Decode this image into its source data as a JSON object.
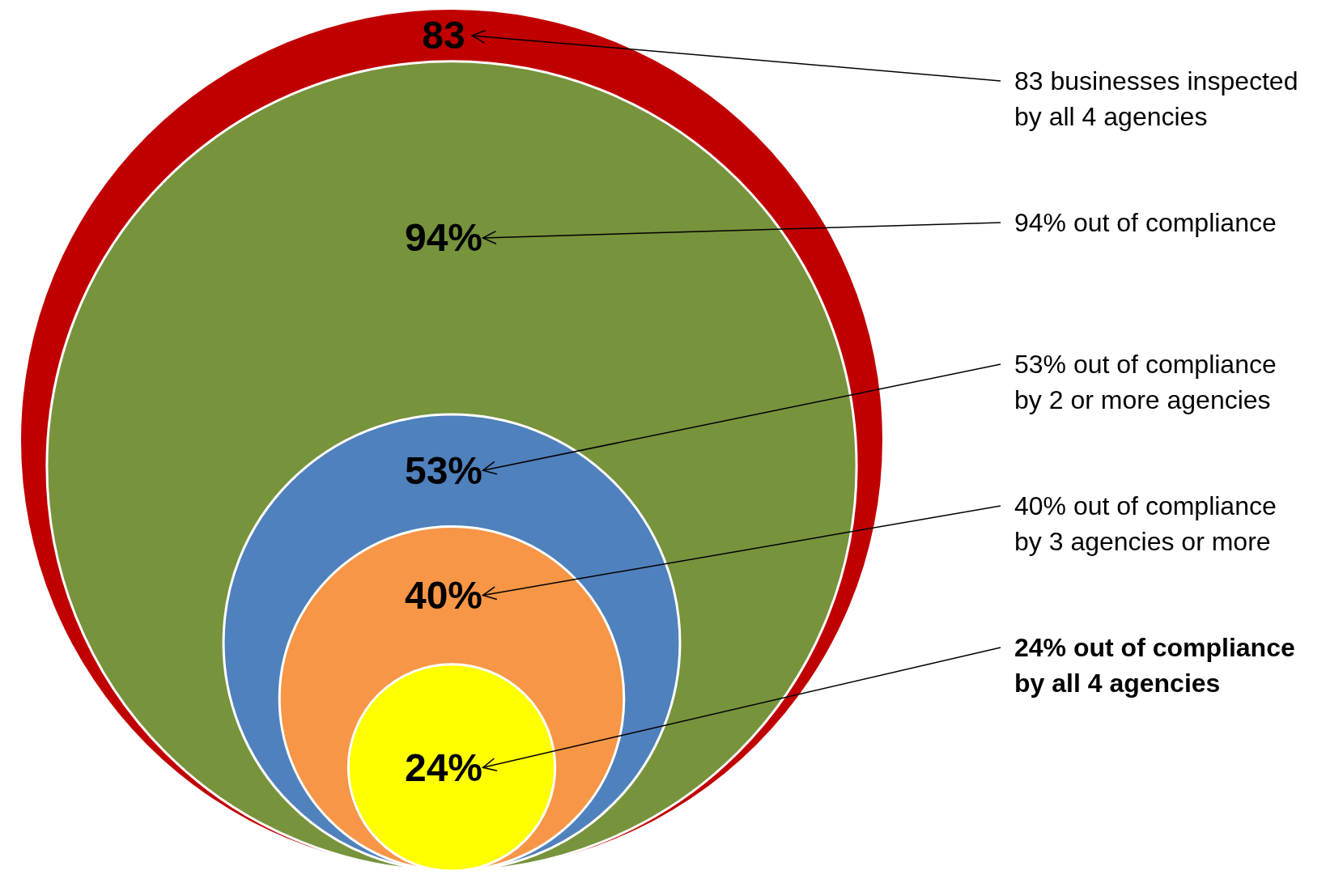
{
  "chart_data": {
    "type": "other",
    "categories": [
      "83 businesses inspected\nby all 4 agencies",
      "94% out of compliance",
      "53% out of compliance\nby 2 or more agencies",
      "40% out of compliance\nby 3 agencies or more",
      "24% out of compliance\nby all 4 agencies"
    ],
    "values": [
      83,
      94,
      53,
      40,
      24
    ],
    "value_labels": [
      "83",
      "94%",
      "53%",
      "40%",
      "24%"
    ],
    "colors": [
      "#c00000",
      "#77933c",
      "#4f81bd",
      "#f79646",
      "#ffff00"
    ]
  }
}
